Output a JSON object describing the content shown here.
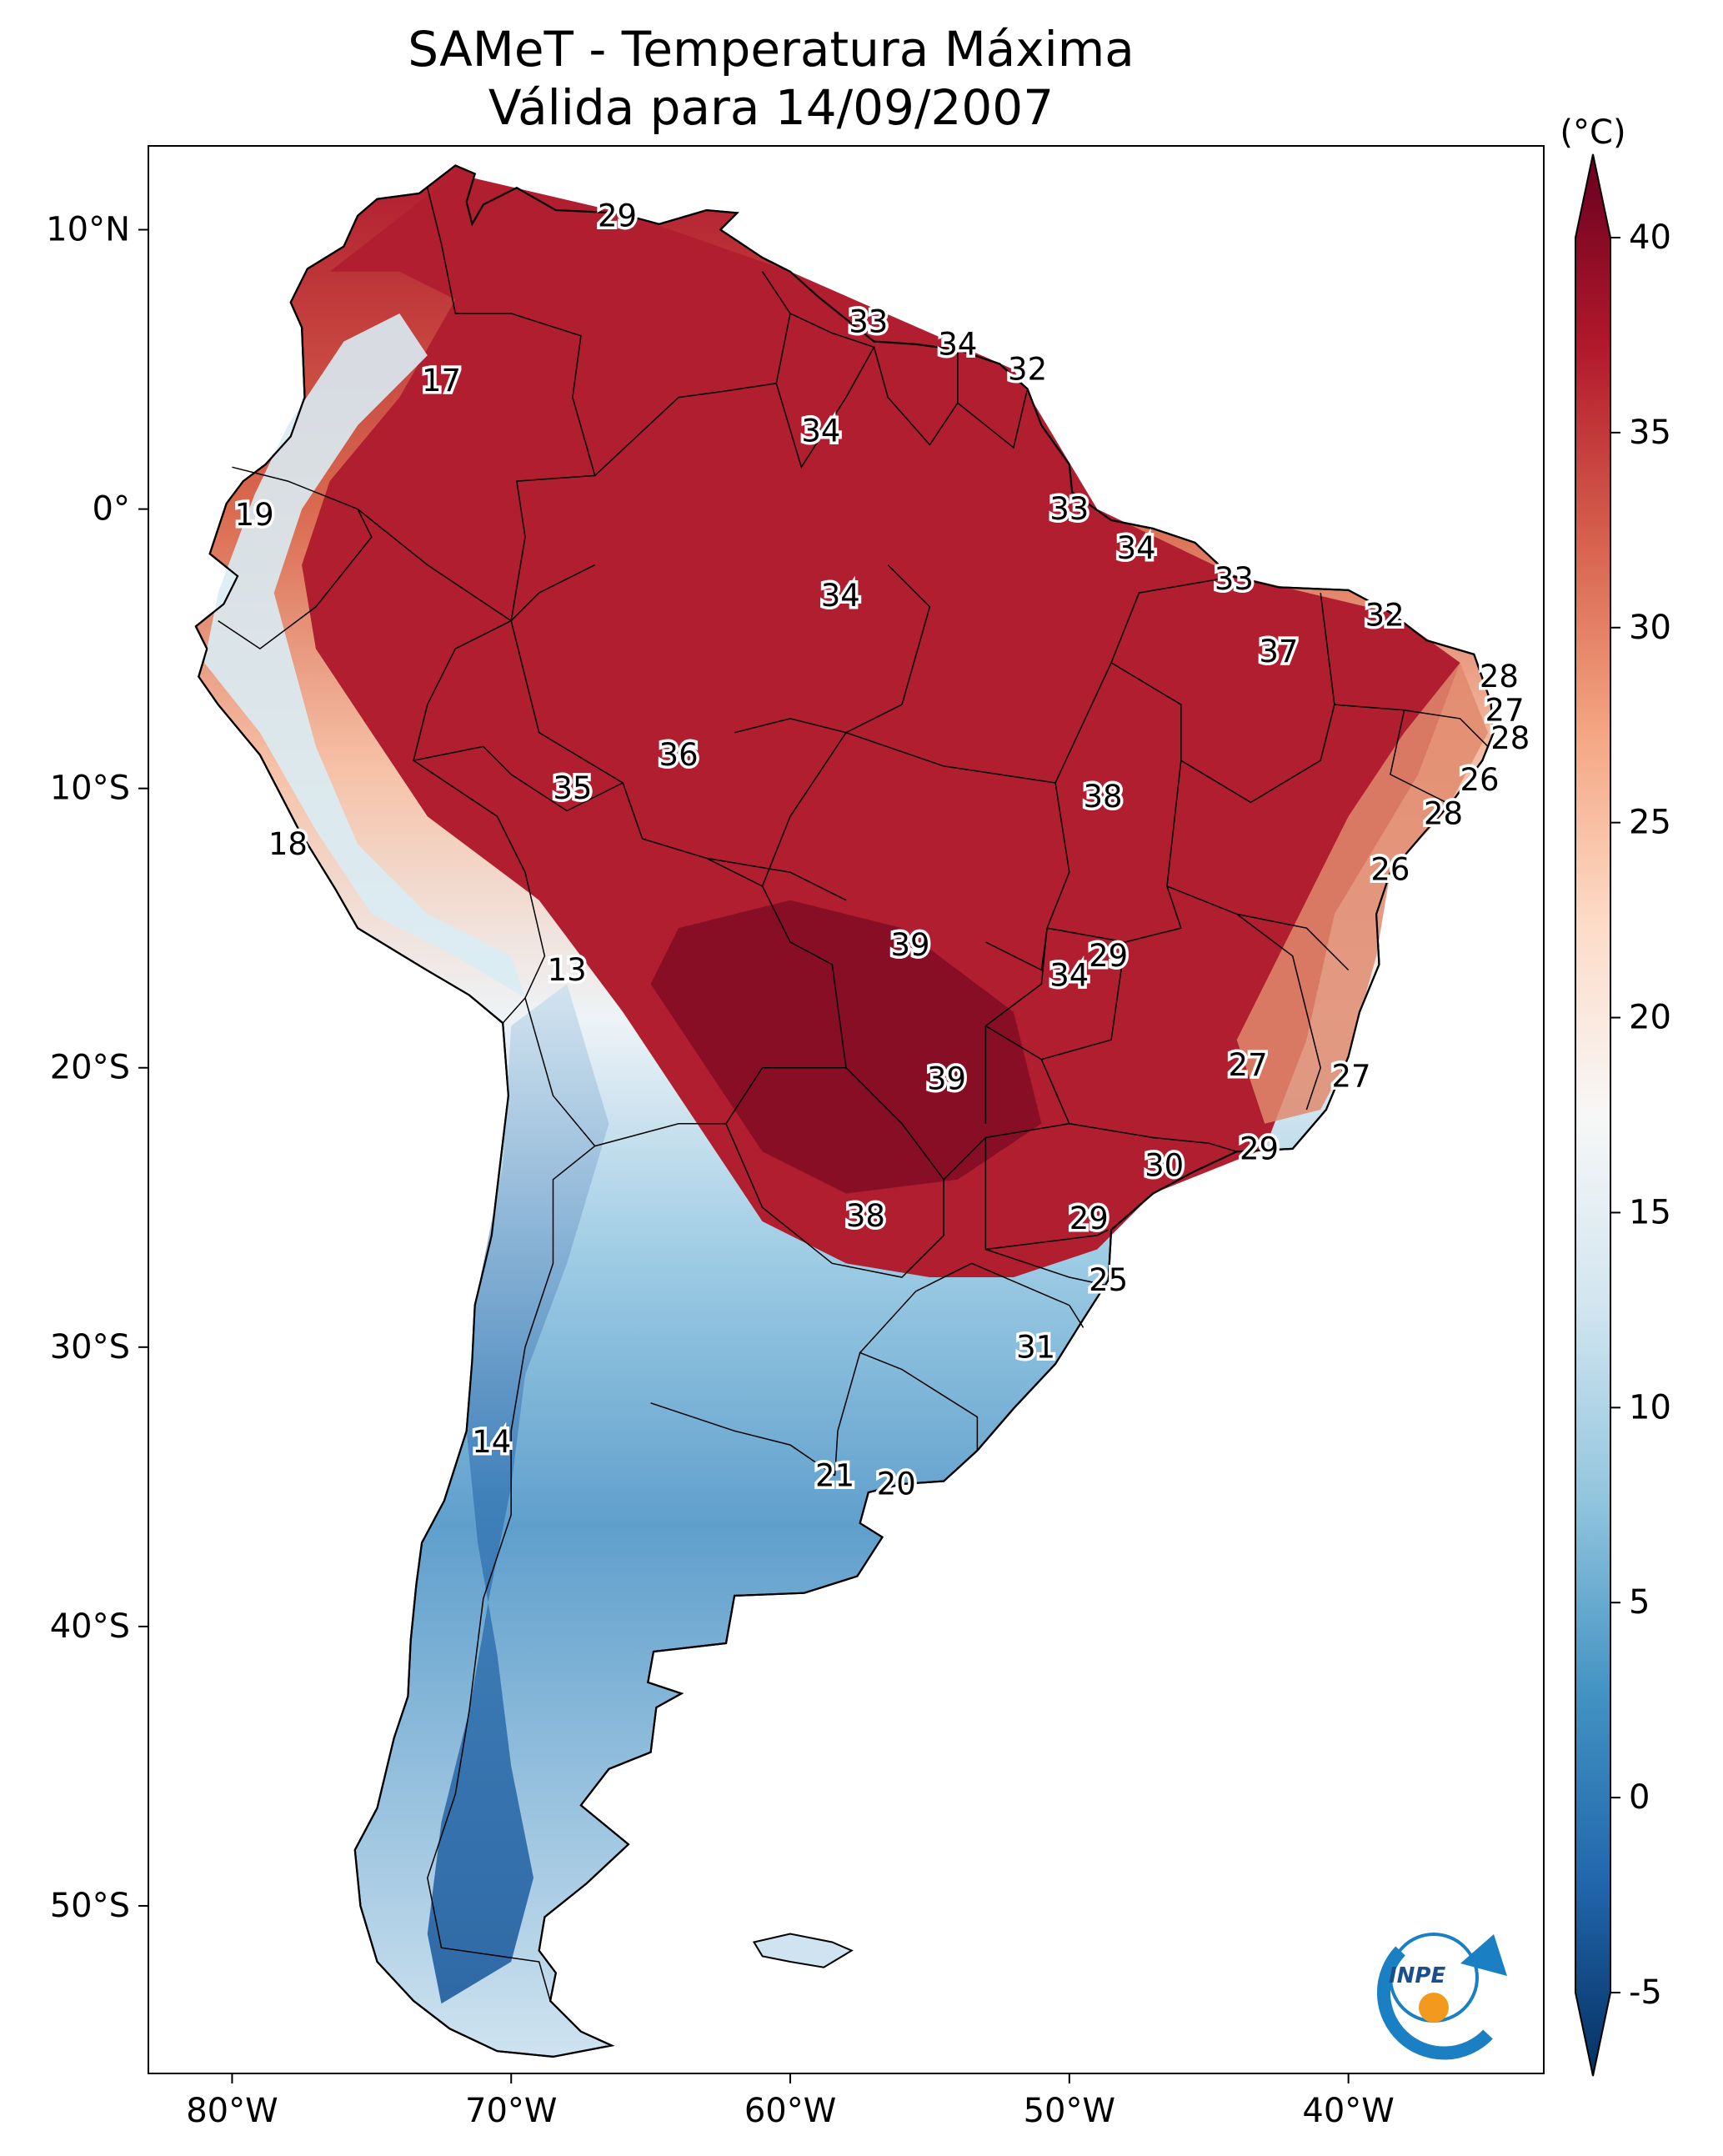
{
  "title": {
    "line1": "SAMeT - Temperatura Máxima",
    "line2": "Válida para 14/09/2007"
  },
  "map": {
    "lon_range": [
      -83,
      -33
    ],
    "lat_range": [
      -56,
      13
    ],
    "x_ticks": [
      {
        "lon": -80,
        "label": "80°W"
      },
      {
        "lon": -70,
        "label": "70°W"
      },
      {
        "lon": -60,
        "label": "60°W"
      },
      {
        "lon": -50,
        "label": "50°W"
      },
      {
        "lon": -40,
        "label": "40°W"
      }
    ],
    "y_ticks": [
      {
        "lat": 10,
        "label": "10°N"
      },
      {
        "lat": 0,
        "label": "0°"
      },
      {
        "lat": -10,
        "label": "10°S"
      },
      {
        "lat": -20,
        "label": "20°S"
      },
      {
        "lat": -30,
        "label": "30°S"
      },
      {
        "lat": -40,
        "label": "40°S"
      },
      {
        "lat": -50,
        "label": "50°S"
      }
    ],
    "station_values": [
      {
        "lon": -66.2,
        "lat": 10.5,
        "value": "29"
      },
      {
        "lon": -57.2,
        "lat": 6.7,
        "value": "33"
      },
      {
        "lon": -54.0,
        "lat": 5.9,
        "value": "34"
      },
      {
        "lon": -51.5,
        "lat": 5.0,
        "value": "32"
      },
      {
        "lon": -72.5,
        "lat": 4.6,
        "value": "17"
      },
      {
        "lon": -58.9,
        "lat": 2.8,
        "value": "34"
      },
      {
        "lon": -79.2,
        "lat": -0.2,
        "value": "19"
      },
      {
        "lon": -50.0,
        "lat": 0.0,
        "value": "33"
      },
      {
        "lon": -47.6,
        "lat": -1.4,
        "value": "34"
      },
      {
        "lon": -58.2,
        "lat": -3.1,
        "value": "34"
      },
      {
        "lon": -44.1,
        "lat": -2.5,
        "value": "33"
      },
      {
        "lon": -38.7,
        "lat": -3.8,
        "value": "32"
      },
      {
        "lon": -42.5,
        "lat": -5.1,
        "value": "37"
      },
      {
        "lon": -34.6,
        "lat": -6.0,
        "value": "28"
      },
      {
        "lon": -34.4,
        "lat": -7.2,
        "value": "27"
      },
      {
        "lon": -34.2,
        "lat": -8.2,
        "value": "28"
      },
      {
        "lon": -64.0,
        "lat": -8.8,
        "value": "36"
      },
      {
        "lon": -35.3,
        "lat": -9.7,
        "value": "26"
      },
      {
        "lon": -67.8,
        "lat": -10.0,
        "value": "35"
      },
      {
        "lon": -48.8,
        "lat": -10.3,
        "value": "38"
      },
      {
        "lon": -36.6,
        "lat": -10.9,
        "value": "28"
      },
      {
        "lon": -78.0,
        "lat": -12.0,
        "value": "18"
      },
      {
        "lon": -38.5,
        "lat": -12.9,
        "value": "26"
      },
      {
        "lon": -48.6,
        "lat": -16.0,
        "value": "29"
      },
      {
        "lon": -55.7,
        "lat": -15.6,
        "value": "39"
      },
      {
        "lon": -50.0,
        "lat": -16.7,
        "value": "34"
      },
      {
        "lon": -68.0,
        "lat": -16.5,
        "value": "13"
      },
      {
        "lon": -43.6,
        "lat": -19.9,
        "value": "27"
      },
      {
        "lon": -39.9,
        "lat": -20.3,
        "value": "27"
      },
      {
        "lon": -54.4,
        "lat": -20.4,
        "value": "39"
      },
      {
        "lon": -43.2,
        "lat": -22.9,
        "value": "29"
      },
      {
        "lon": -46.6,
        "lat": -23.5,
        "value": "30"
      },
      {
        "lon": -57.3,
        "lat": -25.3,
        "value": "38"
      },
      {
        "lon": -49.3,
        "lat": -25.4,
        "value": "29"
      },
      {
        "lon": -48.6,
        "lat": -27.6,
        "value": "25"
      },
      {
        "lon": -51.2,
        "lat": -30.0,
        "value": "31"
      },
      {
        "lon": -70.7,
        "lat": -33.4,
        "value": "14"
      },
      {
        "lon": -58.4,
        "lat": -34.6,
        "value": "21"
      },
      {
        "lon": -56.2,
        "lat": -34.9,
        "value": "20"
      }
    ],
    "logo_text": "INPE"
  },
  "colorbar": {
    "unit": "(°C)",
    "min": -5,
    "max": 40,
    "extend": "both",
    "ticks": [
      {
        "value": 40,
        "label": "40"
      },
      {
        "value": 35,
        "label": "35"
      },
      {
        "value": 30,
        "label": "30"
      },
      {
        "value": 25,
        "label": "25"
      },
      {
        "value": 20,
        "label": "20"
      },
      {
        "value": 15,
        "label": "15"
      },
      {
        "value": 10,
        "label": "10"
      },
      {
        "value": 5,
        "label": "5"
      },
      {
        "value": 0,
        "label": "0"
      },
      {
        "value": -5,
        "label": "-5"
      }
    ],
    "colors": [
      "#053061",
      "#2166ac",
      "#4393c3",
      "#92c5de",
      "#d1e5f0",
      "#f7f7f7",
      "#fddbc7",
      "#f4a582",
      "#d6604d",
      "#b2182b",
      "#67001f"
    ]
  }
}
